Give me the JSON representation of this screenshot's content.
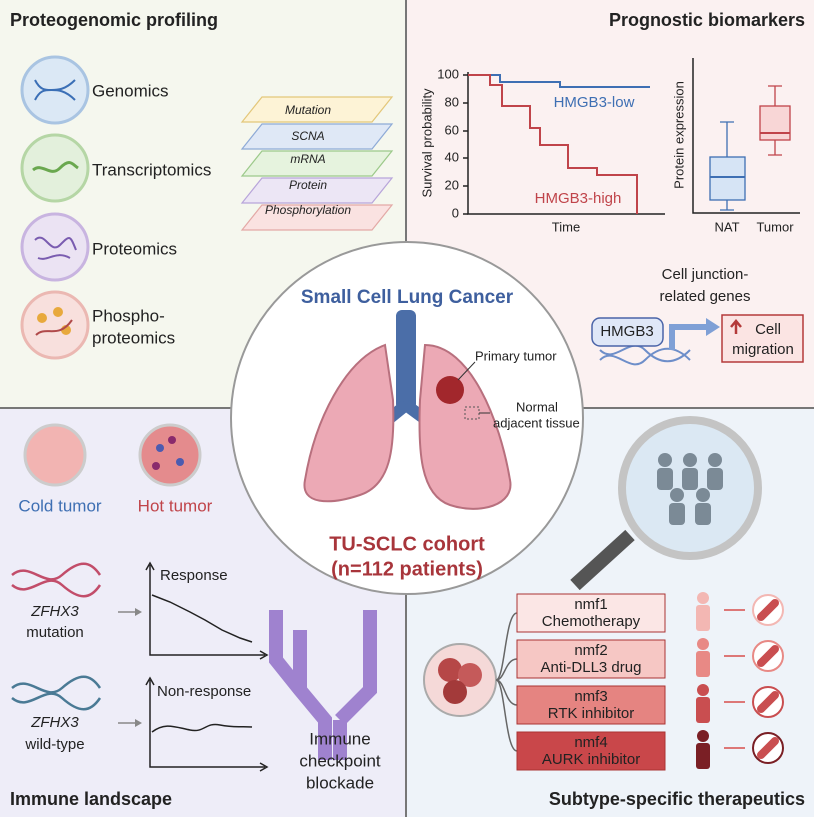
{
  "proteogenomic": {
    "title": "Proteogenomic profiling",
    "omics": [
      "Genomics",
      "Transcriptomics",
      "Proteomics"
    ],
    "phospho": [
      "Phospho-",
      "proteomics"
    ],
    "layers": [
      "Mutation",
      "SCNA",
      "mRNA",
      "Protein",
      "Phosphorylation"
    ]
  },
  "prognostic": {
    "title": "Prognostic biomarkers",
    "survival": {
      "y_label": "Survival probability",
      "x_label": "Time",
      "yticks": [
        "100",
        "80",
        "60",
        "40",
        "20",
        "0"
      ],
      "low_label": "HMGB3-low",
      "high_label": "HMGB3-high"
    },
    "expression": {
      "y_label": "Protein expression",
      "groups": [
        "NAT",
        "Tumor"
      ]
    },
    "junction": [
      "Cell junction-",
      "related genes"
    ],
    "gene": "HMGB3",
    "effect": [
      "Cell",
      "migration"
    ]
  },
  "center": {
    "title": "Small Cell Lung Cancer",
    "primary": "Primary tumor",
    "normal": [
      "Normal",
      "adjacent tissue"
    ],
    "cohort": "TU-SCLC cohort",
    "patients": "(n=112 patients)"
  },
  "immune": {
    "title": "Immune landscape",
    "cold": "Cold tumor",
    "hot": "Hot tumor",
    "mutant": {
      "gene": "ZFHX3",
      "status": "mutation",
      "response": "Response"
    },
    "wildtype": {
      "gene": "ZFHX3",
      "status": "wild-type",
      "response": "Non-response"
    },
    "therapy": [
      "Immune",
      "checkpoint",
      "blockade"
    ]
  },
  "subtypes": {
    "title": "Subtype-specific therapeutics",
    "items": [
      {
        "name": "nmf1",
        "drug": "Chemotherapy"
      },
      {
        "name": "nmf2",
        "drug": "Anti-DLL3 drug"
      },
      {
        "name": "nmf3",
        "drug": "RTK inhibitor"
      },
      {
        "name": "nmf4",
        "drug": "AURK inhibitor"
      }
    ]
  }
}
